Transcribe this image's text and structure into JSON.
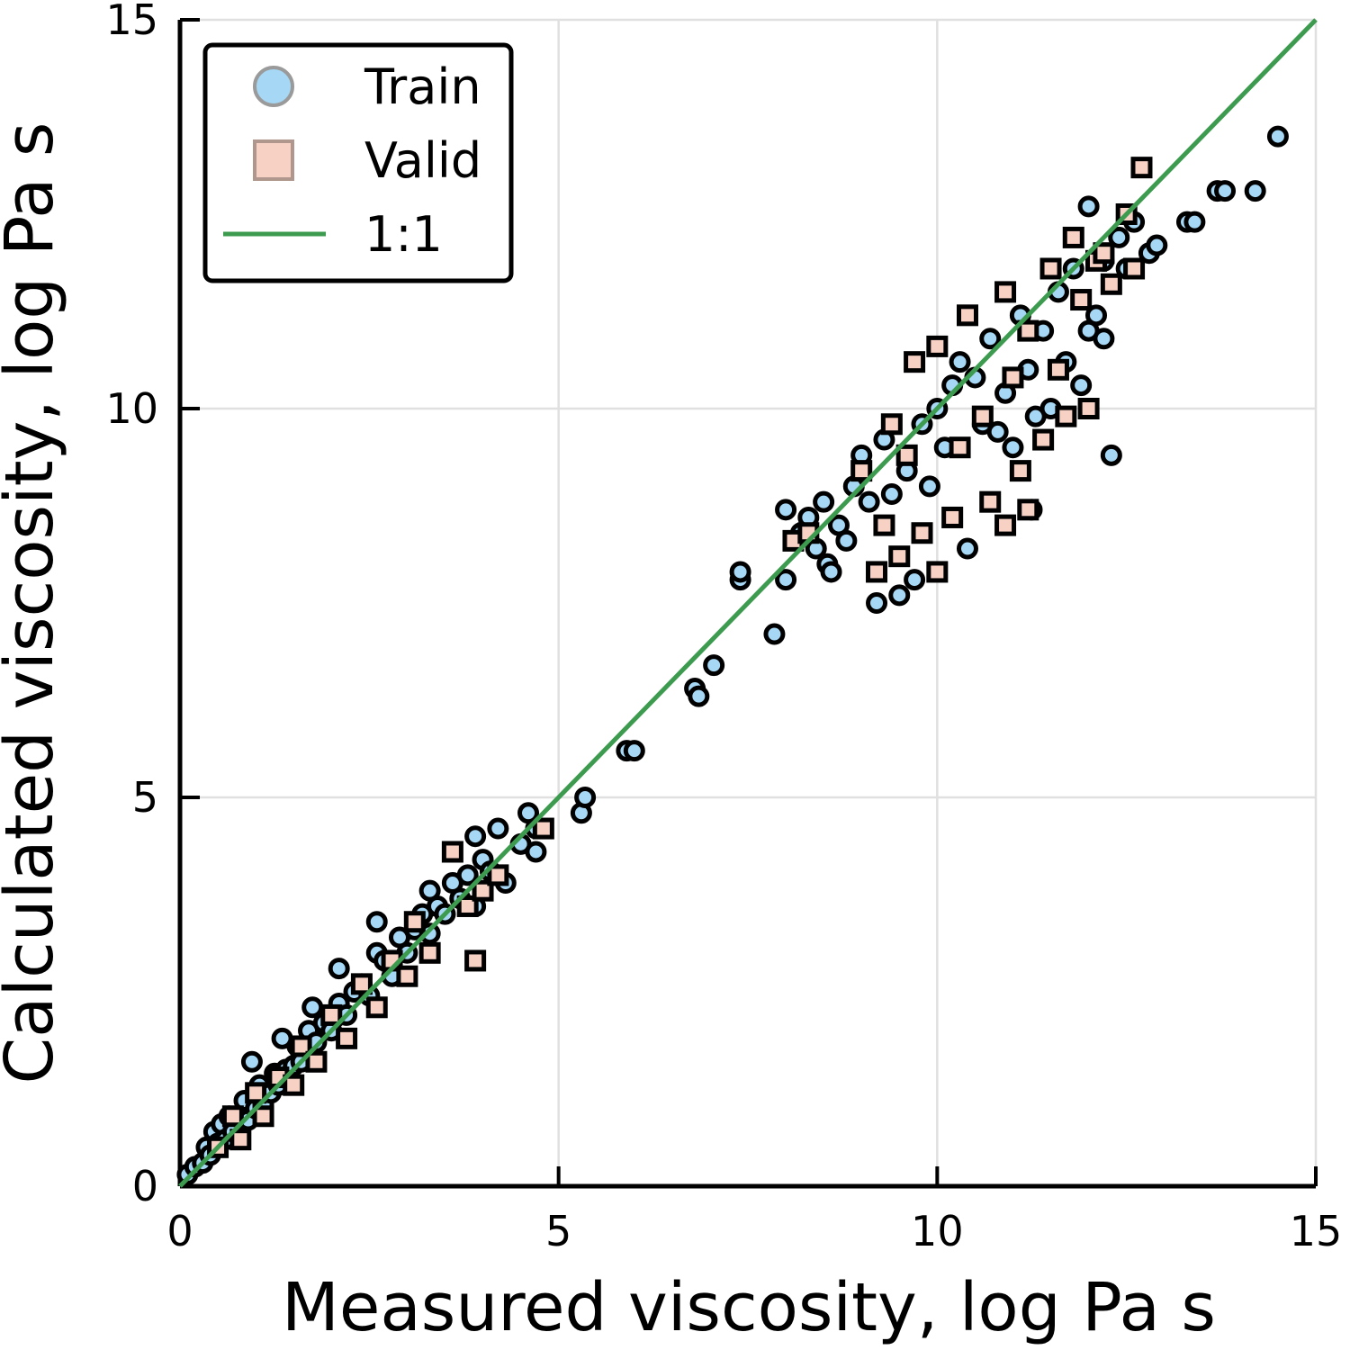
{
  "chart_data": {
    "type": "scatter",
    "xlabel": "Measured viscosity, log Pa s",
    "ylabel": "Calculated viscosity, log Pa s",
    "xlim": [
      0,
      15
    ],
    "ylim": [
      0,
      15
    ],
    "xticks": [
      0,
      5,
      10,
      15
    ],
    "yticks": [
      0,
      5,
      10,
      15
    ],
    "grid": true,
    "legend_position": "top-left",
    "series": [
      {
        "name": "Train",
        "marker": "circle",
        "color": "#a6d8f5",
        "points": [
          [
            0.1,
            0.15
          ],
          [
            0.2,
            0.25
          ],
          [
            0.3,
            0.3
          ],
          [
            0.35,
            0.5
          ],
          [
            0.4,
            0.4
          ],
          [
            0.45,
            0.7
          ],
          [
            0.5,
            0.55
          ],
          [
            0.55,
            0.8
          ],
          [
            0.6,
            0.6
          ],
          [
            0.65,
            0.9
          ],
          [
            0.7,
            0.7
          ],
          [
            0.8,
            0.9
          ],
          [
            0.85,
            1.1
          ],
          [
            0.9,
            0.85
          ],
          [
            0.95,
            1.6
          ],
          [
            1.0,
            1.0
          ],
          [
            1.05,
            1.3
          ],
          [
            1.1,
            1.05
          ],
          [
            1.2,
            1.2
          ],
          [
            1.25,
            1.45
          ],
          [
            1.3,
            1.3
          ],
          [
            1.35,
            1.9
          ],
          [
            1.4,
            1.5
          ],
          [
            1.5,
            1.55
          ],
          [
            1.55,
            1.8
          ],
          [
            1.6,
            1.6
          ],
          [
            1.7,
            2.0
          ],
          [
            1.75,
            2.3
          ],
          [
            1.8,
            1.85
          ],
          [
            1.9,
            2.1
          ],
          [
            2.0,
            2.0
          ],
          [
            2.1,
            2.35
          ],
          [
            2.2,
            2.2
          ],
          [
            2.1,
            2.8
          ],
          [
            2.3,
            2.5
          ],
          [
            2.4,
            2.6
          ],
          [
            2.5,
            2.45
          ],
          [
            2.6,
            3.0
          ],
          [
            2.6,
            3.4
          ],
          [
            2.7,
            2.9
          ],
          [
            2.8,
            2.7
          ],
          [
            2.9,
            3.2
          ],
          [
            3.0,
            3.0
          ],
          [
            3.1,
            3.3
          ],
          [
            3.2,
            3.5
          ],
          [
            3.3,
            3.25
          ],
          [
            3.3,
            3.8
          ],
          [
            3.4,
            3.6
          ],
          [
            3.5,
            3.5
          ],
          [
            3.6,
            3.9
          ],
          [
            3.7,
            3.7
          ],
          [
            3.8,
            4.0
          ],
          [
            3.9,
            3.6
          ],
          [
            3.9,
            4.5
          ],
          [
            4.0,
            4.2
          ],
          [
            4.1,
            4.05
          ],
          [
            4.2,
            4.6
          ],
          [
            4.3,
            3.9
          ],
          [
            4.5,
            4.4
          ],
          [
            4.6,
            4.8
          ],
          [
            4.7,
            4.6
          ],
          [
            4.7,
            4.3
          ],
          [
            5.3,
            4.8
          ],
          [
            5.35,
            5.0
          ],
          [
            5.9,
            5.6
          ],
          [
            6.0,
            5.6
          ],
          [
            6.8,
            6.4
          ],
          [
            6.85,
            6.3
          ],
          [
            7.05,
            6.7
          ],
          [
            7.4,
            7.8
          ],
          [
            7.4,
            7.9
          ],
          [
            7.85,
            7.1
          ],
          [
            8.0,
            8.7
          ],
          [
            8.0,
            7.8
          ],
          [
            8.2,
            8.4
          ],
          [
            8.3,
            8.6
          ],
          [
            8.4,
            8.2
          ],
          [
            8.5,
            8.8
          ],
          [
            8.55,
            8.0
          ],
          [
            8.6,
            7.9
          ],
          [
            8.7,
            8.5
          ],
          [
            8.8,
            8.3
          ],
          [
            8.9,
            9.0
          ],
          [
            9.0,
            9.4
          ],
          [
            9.1,
            8.8
          ],
          [
            9.2,
            7.5
          ],
          [
            9.3,
            9.6
          ],
          [
            9.4,
            8.9
          ],
          [
            9.5,
            7.6
          ],
          [
            9.6,
            9.2
          ],
          [
            9.7,
            7.8
          ],
          [
            9.8,
            9.8
          ],
          [
            9.9,
            9.0
          ],
          [
            10.0,
            10.0
          ],
          [
            10.1,
            9.5
          ],
          [
            10.2,
            10.3
          ],
          [
            10.3,
            10.6
          ],
          [
            10.4,
            8.2
          ],
          [
            10.5,
            10.4
          ],
          [
            10.6,
            9.8
          ],
          [
            10.7,
            10.9
          ],
          [
            10.8,
            9.7
          ],
          [
            10.9,
            10.2
          ],
          [
            11.0,
            9.5
          ],
          [
            11.1,
            11.2
          ],
          [
            11.2,
            10.5
          ],
          [
            11.25,
            8.7
          ],
          [
            11.3,
            9.9
          ],
          [
            11.4,
            11.0
          ],
          [
            11.5,
            10.0
          ],
          [
            11.6,
            11.5
          ],
          [
            11.7,
            10.6
          ],
          [
            11.8,
            11.8
          ],
          [
            11.9,
            10.3
          ],
          [
            12.0,
            12.6
          ],
          [
            12.0,
            11.0
          ],
          [
            12.1,
            11.2
          ],
          [
            12.2,
            10.9
          ],
          [
            12.2,
            11.9
          ],
          [
            12.3,
            9.4
          ],
          [
            12.4,
            12.2
          ],
          [
            12.5,
            11.8
          ],
          [
            12.6,
            12.4
          ],
          [
            12.8,
            12.0
          ],
          [
            12.9,
            12.1
          ],
          [
            13.3,
            12.4
          ],
          [
            13.4,
            12.4
          ],
          [
            13.7,
            12.8
          ],
          [
            13.8,
            12.8
          ],
          [
            14.2,
            12.8
          ],
          [
            14.5,
            13.5
          ]
        ]
      },
      {
        "name": "Valid",
        "marker": "square",
        "color": "#f7d1c4",
        "points": [
          [
            0.5,
            0.5
          ],
          [
            0.7,
            0.9
          ],
          [
            0.8,
            0.6
          ],
          [
            1.0,
            1.2
          ],
          [
            1.1,
            0.9
          ],
          [
            1.3,
            1.4
          ],
          [
            1.5,
            1.3
          ],
          [
            1.6,
            1.8
          ],
          [
            1.8,
            1.6
          ],
          [
            2.0,
            2.2
          ],
          [
            2.2,
            1.9
          ],
          [
            2.4,
            2.6
          ],
          [
            2.6,
            2.3
          ],
          [
            2.8,
            2.9
          ],
          [
            3.0,
            2.7
          ],
          [
            3.1,
            3.4
          ],
          [
            3.3,
            3.0
          ],
          [
            3.6,
            4.3
          ],
          [
            3.8,
            3.6
          ],
          [
            3.9,
            2.9
          ],
          [
            4.0,
            3.8
          ],
          [
            4.2,
            4.0
          ],
          [
            4.8,
            4.6
          ],
          [
            8.1,
            8.3
          ],
          [
            8.3,
            8.4
          ],
          [
            9.0,
            9.2
          ],
          [
            9.2,
            7.9
          ],
          [
            9.3,
            8.5
          ],
          [
            9.4,
            9.8
          ],
          [
            9.5,
            8.1
          ],
          [
            9.6,
            9.4
          ],
          [
            9.7,
            10.6
          ],
          [
            9.8,
            8.4
          ],
          [
            10.0,
            10.8
          ],
          [
            10.0,
            7.9
          ],
          [
            10.2,
            8.6
          ],
          [
            10.3,
            9.5
          ],
          [
            10.4,
            11.2
          ],
          [
            10.6,
            9.9
          ],
          [
            10.7,
            8.8
          ],
          [
            10.9,
            11.5
          ],
          [
            10.9,
            8.5
          ],
          [
            11.0,
            10.4
          ],
          [
            11.1,
            9.2
          ],
          [
            11.2,
            11.0
          ],
          [
            11.2,
            8.7
          ],
          [
            11.4,
            9.6
          ],
          [
            11.5,
            11.8
          ],
          [
            11.6,
            10.5
          ],
          [
            11.7,
            9.9
          ],
          [
            11.8,
            12.2
          ],
          [
            11.9,
            11.4
          ],
          [
            12.0,
            10.0
          ],
          [
            12.1,
            11.9
          ],
          [
            12.2,
            12.0
          ],
          [
            12.3,
            11.6
          ],
          [
            12.5,
            12.5
          ],
          [
            12.6,
            11.8
          ],
          [
            12.7,
            13.1
          ]
        ]
      },
      {
        "name": "1:1",
        "marker": "line",
        "color": "#3d9b4f",
        "points": [
          [
            0,
            0
          ],
          [
            15,
            15
          ]
        ]
      }
    ]
  }
}
